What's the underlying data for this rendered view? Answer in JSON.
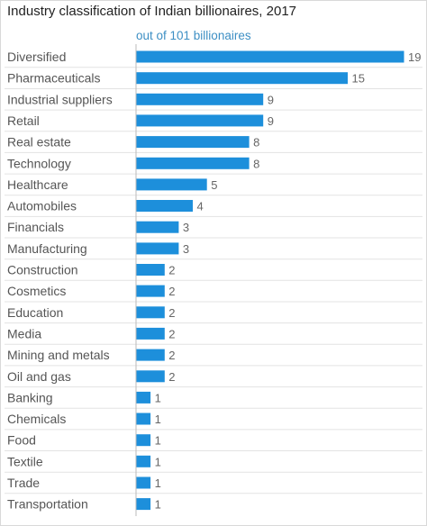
{
  "header": {
    "title": "Industry classification of Indian billionaires, 2017",
    "subtitle": "out of 101 billionaires"
  },
  "colors": {
    "bar": "#1d8fdb",
    "axis": "#bbbbbb",
    "grid": "#e3e3e3"
  },
  "chart_data": {
    "type": "bar",
    "orientation": "horizontal",
    "title": "Industry classification of Indian billionaires, 2017",
    "subtitle": "out of 101 billionaires",
    "categories": [
      "Diversified",
      "Pharmaceuticals",
      "Industrial suppliers",
      "Retail",
      "Real estate",
      "Technology",
      "Healthcare",
      "Automobiles",
      "Financials",
      "Manufacturing",
      "Construction",
      "Cosmetics",
      "Education",
      "Media",
      "Mining and metals",
      "Oil and gas",
      "Banking",
      "Chemicals",
      "Food",
      "Textile",
      "Trade",
      "Transportation"
    ],
    "values": [
      19,
      15,
      9,
      9,
      8,
      8,
      5,
      4,
      3,
      3,
      2,
      2,
      2,
      2,
      2,
      2,
      1,
      1,
      1,
      1,
      1,
      1
    ],
    "xlim": [
      0,
      19
    ],
    "grid": true,
    "data_labels": true
  }
}
